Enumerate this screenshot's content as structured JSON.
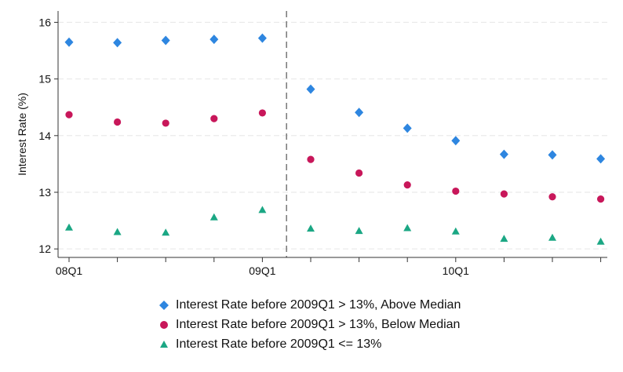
{
  "chart_data": {
    "type": "scatter",
    "ylabel": "Interest Rate (%)",
    "xlabel": "",
    "title": "",
    "x": [
      "08Q1",
      "08Q2",
      "08Q3",
      "08Q4",
      "09Q1",
      "09Q2",
      "09Q3",
      "09Q4",
      "10Q1",
      "10Q2",
      "10Q3",
      "10Q4"
    ],
    "x_tick_labels": [
      "08Q1",
      "09Q1",
      "10Q1"
    ],
    "ylim": [
      11.85,
      16.2
    ],
    "yticks": [
      12,
      13,
      14,
      15,
      16
    ],
    "grid": "horizontal dashed",
    "vline_between": [
      "09Q1",
      "09Q2"
    ],
    "legend_position": "bottom",
    "series": [
      {
        "name": "Interest Rate before 2009Q1 > 13%, Above Median",
        "marker": "diamond",
        "color": "#2e86e0",
        "values": [
          15.65,
          15.64,
          15.68,
          15.7,
          15.72,
          14.82,
          14.41,
          14.13,
          13.91,
          13.67,
          13.66,
          13.59
        ]
      },
      {
        "name": "Interest Rate before 2009Q1 > 13%, Below Median",
        "marker": "circle",
        "color": "#c8175a",
        "values": [
          14.37,
          14.24,
          14.22,
          14.3,
          14.4,
          13.58,
          13.34,
          13.13,
          13.02,
          12.97,
          12.92,
          12.88
        ]
      },
      {
        "name": "Interest Rate before 2009Q1 <= 13%",
        "marker": "triangle",
        "color": "#1ba784",
        "values": [
          12.38,
          12.3,
          12.29,
          12.56,
          12.69,
          12.36,
          12.32,
          12.37,
          12.31,
          12.18,
          12.2,
          12.13
        ]
      }
    ]
  }
}
